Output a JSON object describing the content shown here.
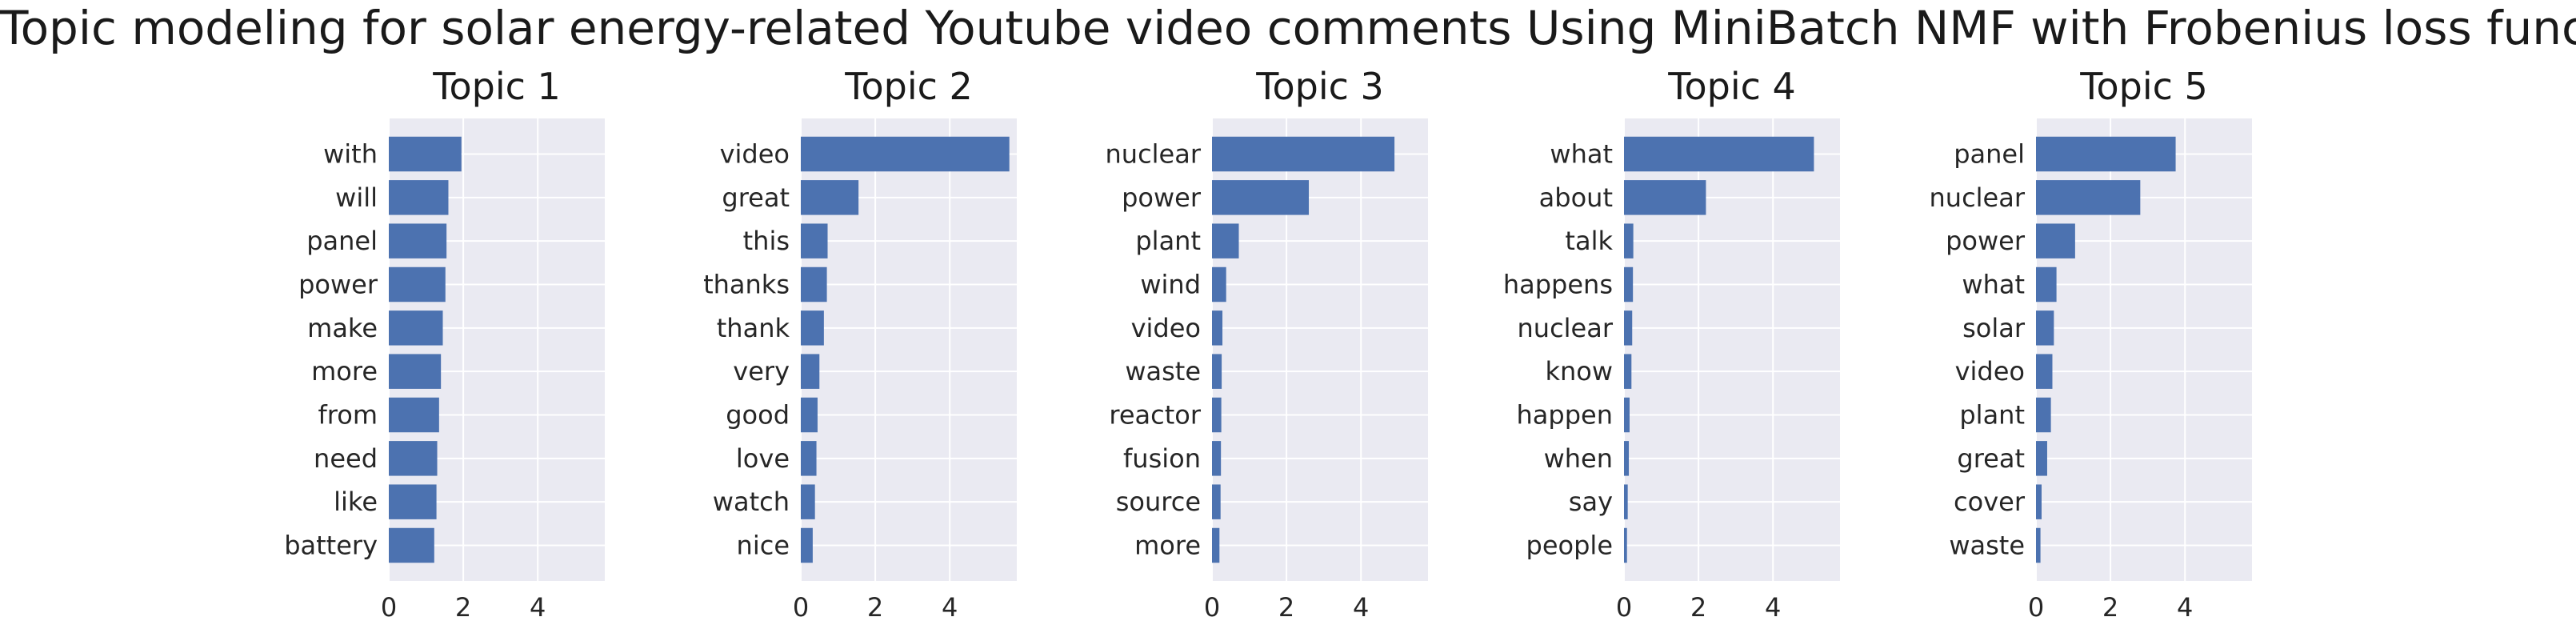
{
  "title": "Topic modeling for solar energy-related Youtube video comments Using MiniBatch NMF with Frobenius loss function",
  "style": {
    "plot_bg": "#eaeaf2",
    "bar_color": "#4c72b0",
    "grid_color": "#ffffff"
  },
  "chart_data": [
    {
      "type": "bar",
      "orientation": "horizontal",
      "title": "Topic 1",
      "categories": [
        "with",
        "will",
        "panel",
        "power",
        "make",
        "more",
        "from",
        "need",
        "like",
        "battery"
      ],
      "values": [
        1.95,
        1.6,
        1.55,
        1.52,
        1.45,
        1.4,
        1.35,
        1.3,
        1.28,
        1.22
      ],
      "xlim": [
        0,
        5.8
      ],
      "xticks": [
        0,
        2,
        4
      ],
      "grid": true
    },
    {
      "type": "bar",
      "orientation": "horizontal",
      "title": "Topic 2",
      "categories": [
        "video",
        "great",
        "this",
        "thanks",
        "thank",
        "very",
        "good",
        "love",
        "watch",
        "nice"
      ],
      "values": [
        5.6,
        1.55,
        0.72,
        0.7,
        0.62,
        0.5,
        0.45,
        0.42,
        0.38,
        0.32
      ],
      "xlim": [
        0,
        5.8
      ],
      "xticks": [
        0,
        2,
        4
      ],
      "grid": true
    },
    {
      "type": "bar",
      "orientation": "horizontal",
      "title": "Topic 3",
      "categories": [
        "nuclear",
        "power",
        "plant",
        "wind",
        "video",
        "waste",
        "reactor",
        "fusion",
        "source",
        "more"
      ],
      "values": [
        4.9,
        2.6,
        0.72,
        0.38,
        0.28,
        0.26,
        0.25,
        0.24,
        0.23,
        0.2
      ],
      "xlim": [
        0,
        5.8
      ],
      "xticks": [
        0,
        2,
        4
      ],
      "grid": true
    },
    {
      "type": "bar",
      "orientation": "horizontal",
      "title": "Topic 4",
      "categories": [
        "what",
        "about",
        "talk",
        "happens",
        "nuclear",
        "know",
        "happen",
        "when",
        "say",
        "people"
      ],
      "values": [
        5.1,
        2.2,
        0.25,
        0.24,
        0.22,
        0.2,
        0.15,
        0.13,
        0.1,
        0.08
      ],
      "xlim": [
        0,
        5.8
      ],
      "xticks": [
        0,
        2,
        4
      ],
      "grid": true
    },
    {
      "type": "bar",
      "orientation": "horizontal",
      "title": "Topic 5",
      "categories": [
        "panel",
        "nuclear",
        "power",
        "what",
        "solar",
        "video",
        "plant",
        "great",
        "cover",
        "waste"
      ],
      "values": [
        3.75,
        2.8,
        1.05,
        0.55,
        0.48,
        0.44,
        0.4,
        0.3,
        0.15,
        0.12
      ],
      "xlim": [
        0,
        5.8
      ],
      "xticks": [
        0,
        2,
        4
      ],
      "grid": true
    }
  ]
}
